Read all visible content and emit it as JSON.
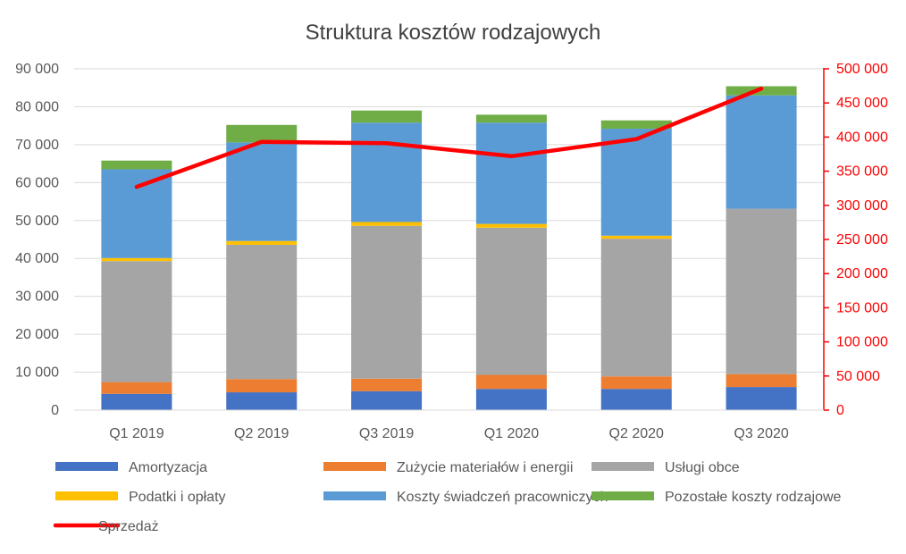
{
  "chart_data": {
    "type": "bar",
    "stacked": true,
    "title": "Struktura kosztów rodzajowych",
    "xlabel": "",
    "ylabel": "",
    "categories": [
      "Q1 2019",
      "Q2 2019",
      "Q3 2019",
      "Q1 2020",
      "Q2 2020",
      "Q3 2020"
    ],
    "ylim": [
      0,
      90000
    ],
    "yticks": [
      "0",
      "10 000",
      "20 000",
      "30 000",
      "40 000",
      "50 000",
      "60 000",
      "70 000",
      "80 000",
      "90 000"
    ],
    "y2lim": [
      0,
      500000
    ],
    "y2ticks": [
      "0",
      "50 000",
      "100 000",
      "150 000",
      "200 000",
      "250 000",
      "300 000",
      "350 000",
      "400 000",
      "450 000",
      "500 000"
    ],
    "grid": true,
    "legend_position": "bottom",
    "series": [
      {
        "name": "Amortyzacja",
        "color": "#4472C4",
        "values": [
          4300,
          4700,
          5000,
          5600,
          5600,
          6100
        ]
      },
      {
        "name": "Zużycie materiałów i energii",
        "color": "#ED7D31",
        "values": [
          3100,
          3500,
          3300,
          3700,
          3300,
          3400
        ]
      },
      {
        "name": "Usługi obce",
        "color": "#A5A5A5",
        "values": [
          31900,
          35400,
          40300,
          38800,
          36300,
          43600
        ]
      },
      {
        "name": "Podatki i opłaty",
        "color": "#FFC000",
        "values": [
          800,
          1000,
          1000,
          1000,
          800,
          0
        ]
      },
      {
        "name": "Koszty świadczeń pracowniczych",
        "color": "#5B9BD5",
        "values": [
          23400,
          26000,
          26200,
          26700,
          28200,
          29900
        ]
      },
      {
        "name": "Pozostałe koszty rodzajowe",
        "color": "#70AD47",
        "values": [
          2300,
          4600,
          3200,
          2100,
          2200,
          2400
        ]
      }
    ],
    "line_series": {
      "name": "Sprzedaż",
      "color": "#FF0000",
      "axis": "secondary",
      "values": [
        327000,
        393000,
        391000,
        372000,
        397000,
        471000
      ]
    }
  }
}
